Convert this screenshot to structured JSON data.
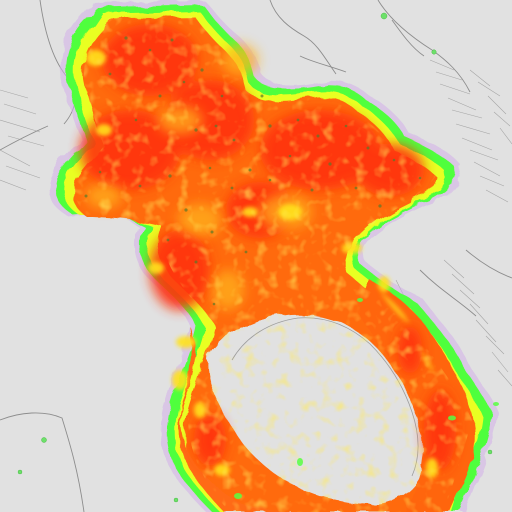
{
  "map": {
    "base_color": "#e1e1e1",
    "line_color": "#8a8a8a",
    "palette": {
      "high": "#ff3b12",
      "mid": "#ff7a10",
      "low": "#ffd21a",
      "edge_yellow": "#e6ff1a",
      "edge_green": "#4fff40",
      "edge_purple": "#c79be0"
    },
    "legend": null
  }
}
